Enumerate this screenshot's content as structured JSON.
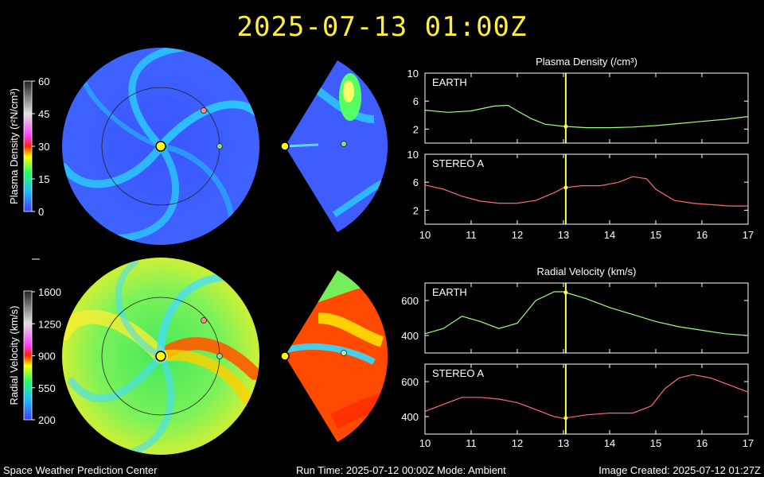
{
  "title": "2025-07-13  01:00Z",
  "footer": {
    "left": "Space Weather Prediction Center",
    "center": "Run Time: 2025-07-12 00:00Z  Mode: Ambient",
    "right": "Image Created: 2025-07-12 01:27Z"
  },
  "colorbars": {
    "density": {
      "label": "Plasma Density (r²N/cm³)",
      "ticks": [
        "60",
        "45",
        "30",
        "15",
        "0"
      ]
    },
    "velocity": {
      "label": "Radial Velocity (km/s)",
      "ticks": [
        "1600",
        "1250",
        "900",
        "550",
        "200"
      ]
    }
  },
  "colors": {
    "title": "#ffef3a",
    "earth_line": "#9cff7a",
    "stereo_line": "#ff6b6b",
    "marker_line": "#ffff44",
    "earth_marker": "#8fd88f",
    "stereo_marker": "#ff8a8a",
    "sun": "#ffff00"
  },
  "chart_data": [
    {
      "type": "line",
      "title": "Plasma Density (/cm³)",
      "panels": [
        {
          "name": "EARTH",
          "x": [
            10,
            10.5,
            11,
            11.5,
            11.8,
            12,
            12.3,
            12.6,
            13,
            13.5,
            14,
            14.5,
            15,
            15.5,
            16,
            16.5,
            17
          ],
          "values": [
            4.7,
            4.4,
            4.6,
            5.3,
            5.4,
            4.6,
            3.5,
            2.7,
            2.4,
            2.2,
            2.2,
            2.3,
            2.5,
            2.8,
            3.1,
            3.4,
            3.8
          ],
          "ylim": [
            0,
            10
          ],
          "yticks": [
            2,
            6,
            10
          ]
        },
        {
          "name": "STEREO A",
          "x": [
            10,
            10.4,
            10.8,
            11.2,
            11.6,
            12,
            12.4,
            12.8,
            13,
            13.4,
            13.8,
            14.2,
            14.5,
            14.8,
            15,
            15.4,
            15.8,
            16.2,
            16.6,
            17
          ],
          "values": [
            5.6,
            5.0,
            4.0,
            3.3,
            3.0,
            3.0,
            3.4,
            4.5,
            5.2,
            5.5,
            5.5,
            6.0,
            6.8,
            6.5,
            5.0,
            3.4,
            3.0,
            2.8,
            2.6,
            2.6
          ],
          "ylim": [
            0,
            10
          ],
          "yticks": [
            2,
            6,
            10
          ]
        }
      ],
      "x_ticks": [
        "10",
        "11",
        "12",
        "13",
        "14",
        "15",
        "16",
        "17"
      ],
      "xlim": [
        10,
        17
      ],
      "marker_x": 13.05
    },
    {
      "type": "line",
      "title": "Radial Velocity (km/s)",
      "panels": [
        {
          "name": "EARTH",
          "x": [
            10,
            10.4,
            10.8,
            11.2,
            11.6,
            12,
            12.4,
            12.8,
            13,
            13.5,
            14,
            14.5,
            15,
            15.5,
            16,
            16.5,
            17
          ],
          "values": [
            410,
            440,
            510,
            480,
            440,
            470,
            600,
            650,
            650,
            610,
            560,
            520,
            480,
            450,
            430,
            410,
            400
          ],
          "ylim": [
            300,
            700
          ],
          "yticks": [
            400,
            600
          ]
        },
        {
          "name": "STEREO A",
          "x": [
            10,
            10.4,
            10.8,
            11.2,
            11.6,
            12,
            12.4,
            12.8,
            13,
            13.5,
            14,
            14.5,
            14.9,
            15.2,
            15.5,
            15.8,
            16.2,
            16.6,
            17
          ],
          "values": [
            430,
            470,
            510,
            510,
            500,
            480,
            440,
            400,
            390,
            410,
            420,
            420,
            460,
            560,
            620,
            640,
            620,
            580,
            540
          ],
          "ylim": [
            300,
            700
          ],
          "yticks": [
            400,
            600
          ]
        }
      ],
      "x_ticks": [
        "10",
        "11",
        "12",
        "13",
        "14",
        "15",
        "16",
        "17"
      ],
      "xlim": [
        10,
        17
      ],
      "marker_x": 13.05
    }
  ]
}
